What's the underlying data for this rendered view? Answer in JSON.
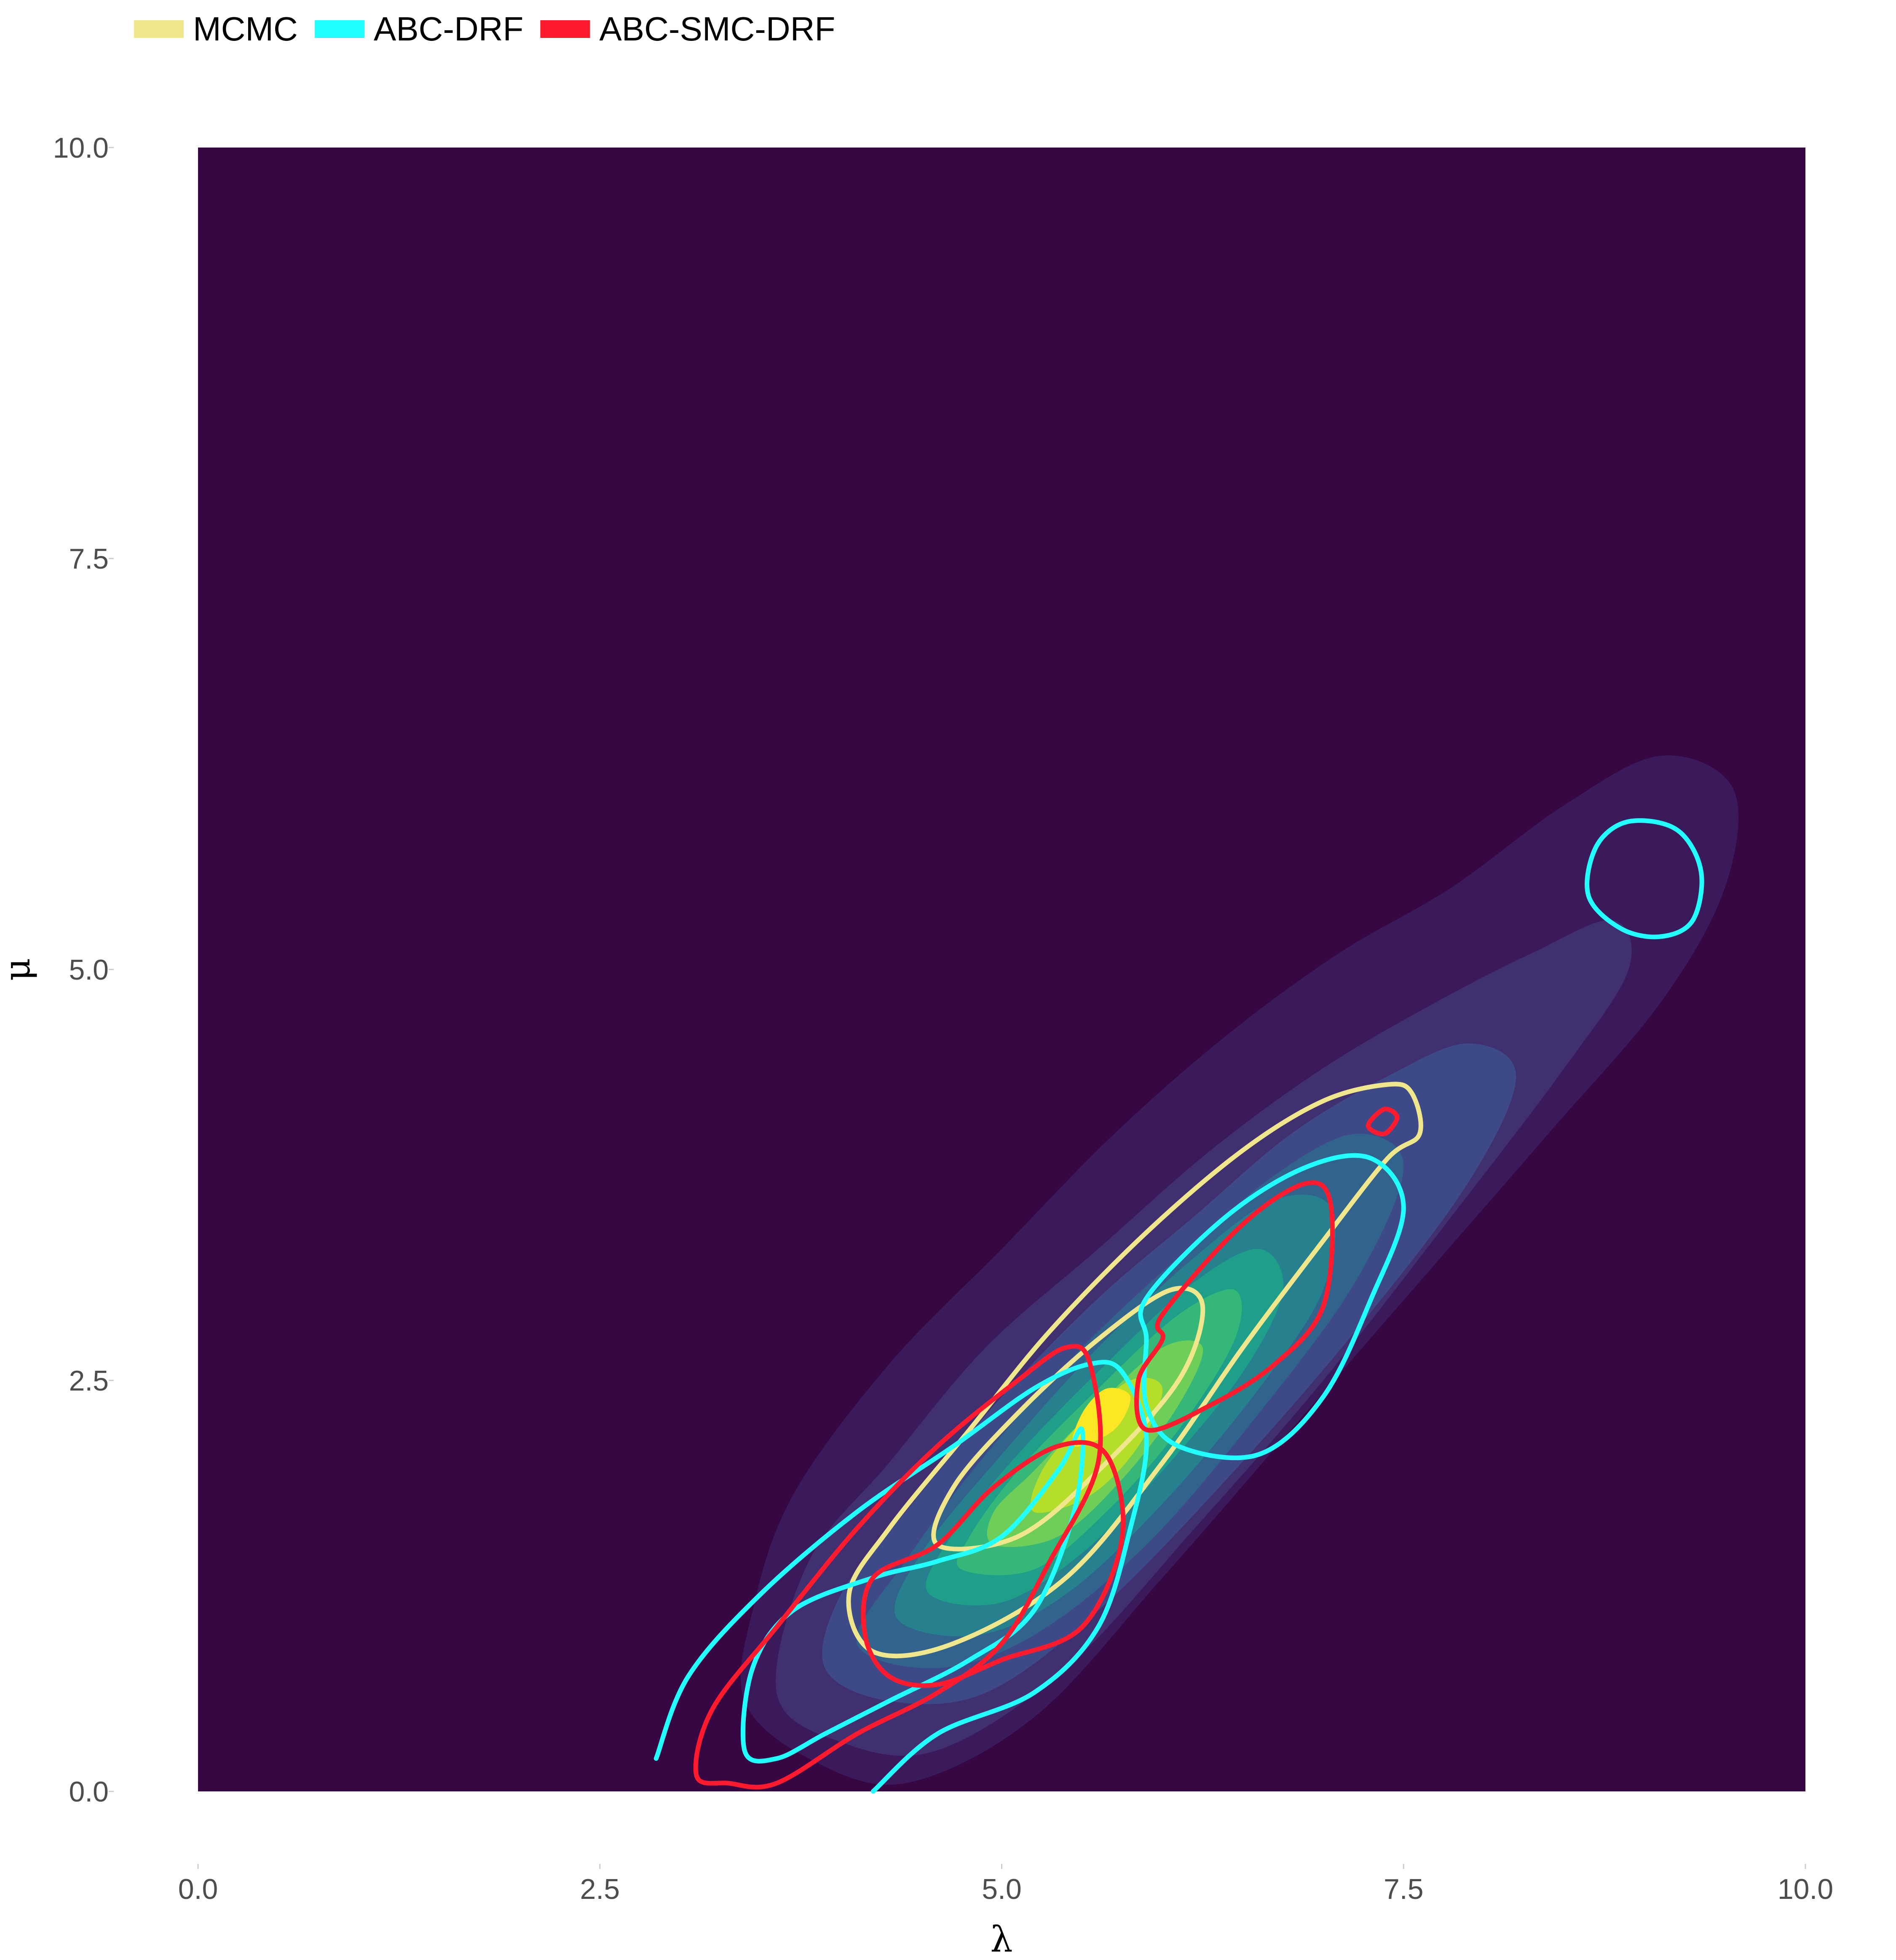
{
  "chart_data": {
    "type": "contour",
    "xlabel": "λ",
    "ylabel": "μ",
    "xlim": [
      0,
      10
    ],
    "ylim": [
      0,
      10
    ],
    "x_ticks": [
      "0.0",
      "2.5",
      "5.0",
      "7.5",
      "10.0"
    ],
    "y_ticks": [
      "0.0",
      "2.5",
      "5.0",
      "7.5",
      "10.0"
    ],
    "legend": {
      "placement": "top-left"
    },
    "background_fill": "viridis density",
    "filled_density": {
      "center": [
        5.5,
        2.3
      ],
      "levels": [
        {
          "color": "#3b1a5c",
          "points": [
            [
              3.4,
              0.55
            ],
            [
              3.8,
              0.2
            ],
            [
              4.4,
              0.05
            ],
            [
              5.2,
              0.45
            ],
            [
              6.0,
              1.3
            ],
            [
              6.8,
              2.2
            ],
            [
              7.6,
              3.1
            ],
            [
              8.4,
              4.0
            ],
            [
              9.1,
              4.8
            ],
            [
              9.5,
              5.5
            ],
            [
              9.55,
              6.1
            ],
            [
              9.1,
              6.3
            ],
            [
              8.5,
              6.0
            ],
            [
              7.8,
              5.5
            ],
            [
              7.1,
              5.1
            ],
            [
              6.4,
              4.6
            ],
            [
              5.7,
              4.0
            ],
            [
              5.0,
              3.3
            ],
            [
              4.3,
              2.6
            ],
            [
              3.7,
              1.8
            ],
            [
              3.45,
              1.1
            ]
          ]
        },
        {
          "color": "#41306f",
          "points": [
            [
              3.6,
              0.6
            ],
            [
              4.0,
              0.3
            ],
            [
              4.6,
              0.25
            ],
            [
              5.4,
              0.75
            ],
            [
              6.2,
              1.6
            ],
            [
              7.0,
              2.5
            ],
            [
              7.8,
              3.5
            ],
            [
              8.5,
              4.4
            ],
            [
              8.9,
              5.0
            ],
            [
              8.8,
              5.3
            ],
            [
              8.3,
              5.1
            ],
            [
              7.7,
              4.8
            ],
            [
              7.0,
              4.4
            ],
            [
              6.3,
              3.9
            ],
            [
              5.6,
              3.3
            ],
            [
              4.9,
              2.7
            ],
            [
              4.3,
              2.0
            ],
            [
              3.8,
              1.4
            ]
          ]
        },
        {
          "color": "#3d4a87",
          "points": [
            [
              3.9,
              0.75
            ],
            [
              4.3,
              0.55
            ],
            [
              4.9,
              0.6
            ],
            [
              5.6,
              1.1
            ],
            [
              6.4,
              1.9
            ],
            [
              7.2,
              2.8
            ],
            [
              7.9,
              3.7
            ],
            [
              8.2,
              4.35
            ],
            [
              7.9,
              4.55
            ],
            [
              7.4,
              4.35
            ],
            [
              6.8,
              4.0
            ],
            [
              6.2,
              3.5
            ],
            [
              5.6,
              3.0
            ],
            [
              5.0,
              2.4
            ],
            [
              4.4,
              1.7
            ],
            [
              4.0,
              1.2
            ]
          ]
        },
        {
          "color": "#31638c",
          "points": [
            [
              4.1,
              0.9
            ],
            [
              4.6,
              0.75
            ],
            [
              5.2,
              0.95
            ],
            [
              5.9,
              1.5
            ],
            [
              6.6,
              2.3
            ],
            [
              7.2,
              3.1
            ],
            [
              7.5,
              3.8
            ],
            [
              7.2,
              4.0
            ],
            [
              6.7,
              3.75
            ],
            [
              6.1,
              3.25
            ],
            [
              5.5,
              2.7
            ],
            [
              4.9,
              2.05
            ],
            [
              4.4,
              1.4
            ]
          ]
        },
        {
          "color": "#26808e",
          "points": [
            [
              4.35,
              1.05
            ],
            [
              4.85,
              0.95
            ],
            [
              5.4,
              1.2
            ],
            [
              6.0,
              1.75
            ],
            [
              6.6,
              2.45
            ],
            [
              7.0,
              3.05
            ],
            [
              7.05,
              3.55
            ],
            [
              6.7,
              3.6
            ],
            [
              6.2,
              3.25
            ],
            [
              5.6,
              2.7
            ],
            [
              5.0,
              2.05
            ],
            [
              4.5,
              1.45
            ]
          ]
        },
        {
          "color": "#1f9e89",
          "points": [
            [
              4.55,
              1.2
            ],
            [
              5.0,
              1.15
            ],
            [
              5.5,
              1.45
            ],
            [
              6.0,
              1.95
            ],
            [
              6.5,
              2.55
            ],
            [
              6.75,
              3.05
            ],
            [
              6.6,
              3.3
            ],
            [
              6.2,
              3.1
            ],
            [
              5.7,
              2.65
            ],
            [
              5.1,
              2.05
            ],
            [
              4.65,
              1.5
            ]
          ]
        },
        {
          "color": "#35b779",
          "points": [
            [
              4.75,
              1.35
            ],
            [
              5.2,
              1.35
            ],
            [
              5.65,
              1.7
            ],
            [
              6.1,
              2.2
            ],
            [
              6.45,
              2.75
            ],
            [
              6.45,
              3.05
            ],
            [
              6.1,
              2.9
            ],
            [
              5.6,
              2.45
            ],
            [
              5.1,
              1.95
            ],
            [
              4.8,
              1.55
            ]
          ]
        },
        {
          "color": "#6ece58",
          "points": [
            [
              4.95,
              1.5
            ],
            [
              5.35,
              1.55
            ],
            [
              5.75,
              1.9
            ],
            [
              6.1,
              2.35
            ],
            [
              6.25,
              2.7
            ],
            [
              6.0,
              2.7
            ],
            [
              5.6,
              2.35
            ],
            [
              5.2,
              1.95
            ],
            [
              4.95,
              1.7
            ]
          ]
        },
        {
          "color": "#b5de2b",
          "points": [
            [
              5.2,
              1.7
            ],
            [
              5.55,
              1.8
            ],
            [
              5.85,
              2.1
            ],
            [
              6.0,
              2.45
            ],
            [
              5.8,
              2.5
            ],
            [
              5.5,
              2.25
            ],
            [
              5.25,
              1.95
            ]
          ]
        },
        {
          "color": "#fde725",
          "points": [
            [
              5.45,
              2.1
            ],
            [
              5.7,
              2.2
            ],
            [
              5.8,
              2.4
            ],
            [
              5.65,
              2.45
            ],
            [
              5.5,
              2.3
            ]
          ]
        }
      ]
    },
    "series": [
      {
        "name": "MCMC",
        "color": "#f0e68c",
        "contours": [
          [
            [
              4.2,
              0.85
            ],
            [
              4.7,
              0.9
            ],
            [
              5.4,
              1.3
            ],
            [
              6.0,
              2.0
            ],
            [
              6.5,
              2.7
            ],
            [
              7.0,
              3.35
            ],
            [
              7.4,
              3.85
            ],
            [
              7.6,
              4.0
            ],
            [
              7.55,
              4.25
            ],
            [
              7.4,
              4.3
            ],
            [
              7.0,
              4.2
            ],
            [
              6.5,
              3.9
            ],
            [
              5.9,
              3.4
            ],
            [
              5.3,
              2.8
            ],
            [
              4.8,
              2.2
            ],
            [
              4.3,
              1.6
            ],
            [
              4.05,
              1.2
            ]
          ],
          [
            [
              4.6,
              1.5
            ],
            [
              5.1,
              1.55
            ],
            [
              5.6,
              1.95
            ],
            [
              6.1,
              2.5
            ],
            [
              6.25,
              2.95
            ],
            [
              6.05,
              3.05
            ],
            [
              5.6,
              2.75
            ],
            [
              5.1,
              2.3
            ],
            [
              4.7,
              1.85
            ]
          ]
        ]
      },
      {
        "name": "ABC-DRF",
        "color": "#22ffff",
        "contours": [
          [
            [
              2.85,
              0.2
            ],
            [
              3.05,
              0.7
            ],
            [
              3.5,
              1.2
            ],
            [
              4.1,
              1.7
            ],
            [
              4.7,
              2.1
            ],
            [
              5.2,
              2.45
            ],
            [
              5.55,
              2.6
            ],
            [
              5.75,
              2.55
            ],
            [
              5.9,
              2.15
            ],
            [
              5.8,
              1.6
            ],
            [
              5.6,
              1.0
            ],
            [
              5.2,
              0.6
            ],
            [
              4.6,
              0.35
            ],
            [
              4.2,
              0.0
            ]
          ],
          [
            [
              3.4,
              0.25
            ],
            [
              3.45,
              0.75
            ],
            [
              3.7,
              1.1
            ],
            [
              4.2,
              1.3
            ],
            [
              4.6,
              1.4
            ],
            [
              5.0,
              1.55
            ],
            [
              5.35,
              1.95
            ],
            [
              5.5,
              2.2
            ],
            [
              5.45,
              1.7
            ],
            [
              5.2,
              1.1
            ],
            [
              4.8,
              0.8
            ],
            [
              4.3,
              0.55
            ],
            [
              3.9,
              0.35
            ],
            [
              3.6,
              0.2
            ]
          ],
          [
            [
              5.9,
              3.0
            ],
            [
              6.4,
              3.5
            ],
            [
              6.9,
              3.8
            ],
            [
              7.3,
              3.85
            ],
            [
              7.5,
              3.55
            ],
            [
              7.3,
              3.0
            ],
            [
              7.0,
              2.4
            ],
            [
              6.6,
              2.05
            ],
            [
              6.1,
              2.1
            ],
            [
              5.9,
              2.35
            ],
            [
              5.9,
              2.75
            ]
          ],
          [
            [
              8.65,
              5.45
            ],
            [
              8.7,
              5.75
            ],
            [
              8.9,
              5.9
            ],
            [
              9.2,
              5.85
            ],
            [
              9.35,
              5.6
            ],
            [
              9.3,
              5.3
            ],
            [
              9.1,
              5.2
            ],
            [
              8.85,
              5.25
            ]
          ]
        ]
      },
      {
        "name": "ABC-SMC-DRF",
        "color": "#ff1a2e",
        "contours": [
          [
            [
              3.1,
              0.1
            ],
            [
              3.2,
              0.5
            ],
            [
              3.6,
              1.0
            ],
            [
              4.1,
              1.6
            ],
            [
              4.6,
              2.1
            ],
            [
              5.1,
              2.5
            ],
            [
              5.4,
              2.7
            ],
            [
              5.55,
              2.6
            ],
            [
              5.6,
              2.0
            ],
            [
              5.3,
              1.4
            ],
            [
              5.0,
              0.9
            ],
            [
              4.6,
              0.6
            ],
            [
              4.1,
              0.35
            ],
            [
              3.6,
              0.05
            ],
            [
              3.3,
              0.05
            ]
          ],
          [
            [
              4.15,
              0.95
            ],
            [
              4.2,
              1.3
            ],
            [
              4.6,
              1.5
            ],
            [
              4.95,
              1.85
            ],
            [
              5.35,
              2.1
            ],
            [
              5.65,
              2.05
            ],
            [
              5.75,
              1.55
            ],
            [
              5.5,
              1.0
            ],
            [
              5.0,
              0.8
            ],
            [
              4.6,
              0.65
            ],
            [
              4.3,
              0.7
            ]
          ],
          [
            [
              6.0,
              2.9
            ],
            [
              6.5,
              3.45
            ],
            [
              6.9,
              3.7
            ],
            [
              7.05,
              3.55
            ],
            [
              7.0,
              2.95
            ],
            [
              6.7,
              2.6
            ],
            [
              6.3,
              2.35
            ],
            [
              5.9,
              2.2
            ],
            [
              5.85,
              2.5
            ],
            [
              6.0,
              2.75
            ]
          ],
          [
            [
              7.28,
              4.05
            ],
            [
              7.38,
              4.15
            ],
            [
              7.46,
              4.1
            ],
            [
              7.38,
              4.0
            ]
          ]
        ]
      }
    ]
  }
}
